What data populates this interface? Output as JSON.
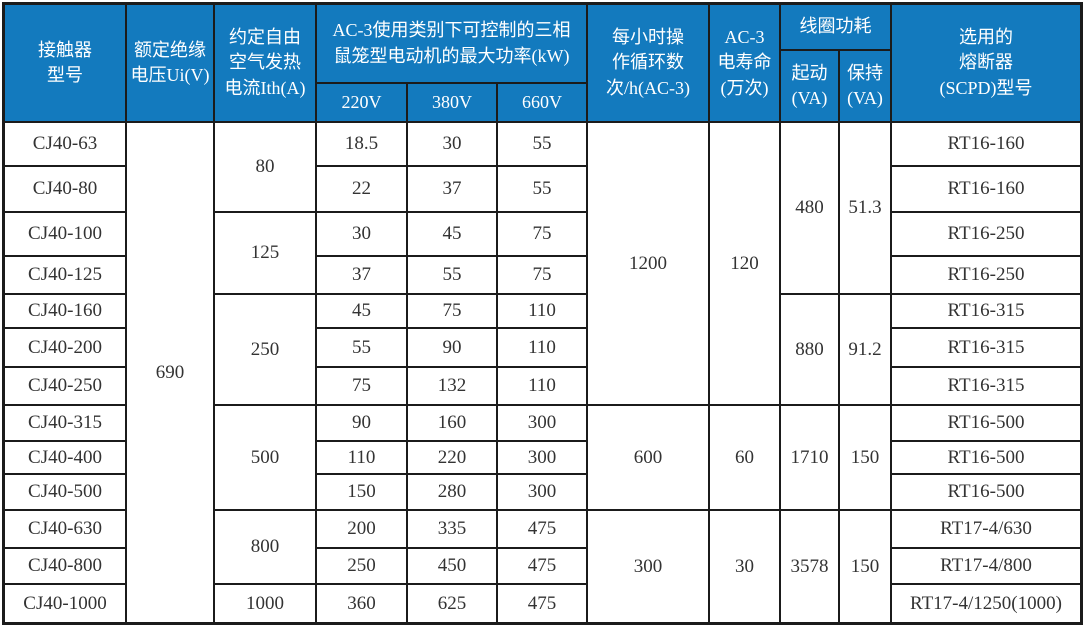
{
  "colors": {
    "header_bg": "#137abe",
    "header_text": "#ffffff",
    "border": "#1b1b1b",
    "body_text": "#333333",
    "page_bg": "#ffffff"
  },
  "table": {
    "header": {
      "contactor_model": "接触器\n型号",
      "insulation_voltage": "额定绝缘\n电压Ui(V)",
      "thermal_current": "约定自由\n空气发热\n电流Ith(A)",
      "ac3_power": "AC-3使用类别下可控制的三相\n鼠笼型电动机的最大功率(kW)",
      "v220": "220V",
      "v380": "380V",
      "v660": "660V",
      "cycles": "每小时操\n作循环数\n次/h(AC-3)",
      "life": "AC-3\n电寿命\n(万次)",
      "coil_power": "线圈功耗",
      "start_va": "起动\n(VA)",
      "hold_va": "保持\n(VA)",
      "fuse": "选用的\n熔断器\n(SCPD)型号"
    },
    "body": {
      "models": [
        "CJ40-63",
        "CJ40-80",
        "CJ40-100",
        "CJ40-125",
        "CJ40-160",
        "CJ40-200",
        "CJ40-250",
        "CJ40-315",
        "CJ40-400",
        "CJ40-500",
        "CJ40-630",
        "CJ40-800",
        "CJ40-1000"
      ],
      "insulation_voltage": "690",
      "ith_groups": [
        {
          "value": "80",
          "span": 2
        },
        {
          "value": "125",
          "span": 2
        },
        {
          "value": "250",
          "span": 3
        },
        {
          "value": "500",
          "span": 3
        },
        {
          "value": "800",
          "span": 2
        },
        {
          "value": "1000",
          "span": 1
        }
      ],
      "power_220v": [
        "18.5",
        "22",
        "30",
        "37",
        "45",
        "55",
        "75",
        "90",
        "110",
        "150",
        "200",
        "250",
        "360"
      ],
      "power_380v": [
        "30",
        "37",
        "45",
        "55",
        "75",
        "90",
        "132",
        "160",
        "220",
        "280",
        "335",
        "450",
        "625"
      ],
      "power_660v": [
        "55",
        "55",
        "75",
        "75",
        "110",
        "110",
        "110",
        "300",
        "300",
        "300",
        "475",
        "475",
        "475"
      ],
      "cycles_groups": [
        {
          "value": "1200",
          "span": 7
        },
        {
          "value": "600",
          "span": 3
        },
        {
          "value": "300",
          "span": 3
        }
      ],
      "life_groups": [
        {
          "value": "120",
          "span": 7
        },
        {
          "value": "60",
          "span": 3
        },
        {
          "value": "30",
          "span": 3
        }
      ],
      "start_va_groups": [
        {
          "value": "480",
          "span": 4
        },
        {
          "value": "880",
          "span": 3
        },
        {
          "value": "1710",
          "span": 3
        },
        {
          "value": "3578",
          "span": 3
        }
      ],
      "hold_va_groups": [
        {
          "value": "51.3",
          "span": 4
        },
        {
          "value": "91.2",
          "span": 3
        },
        {
          "value": "150",
          "span": 3
        },
        {
          "value": "150",
          "span": 3
        }
      ],
      "fuses": [
        "RT16-160",
        "RT16-160",
        "RT16-250",
        "RT16-250",
        "RT16-315",
        "RT16-315",
        "RT16-315",
        "RT16-500",
        "RT16-500",
        "RT16-500",
        "RT17-4/630",
        "RT17-4/800",
        "RT17-4/1250(1000)"
      ]
    }
  }
}
